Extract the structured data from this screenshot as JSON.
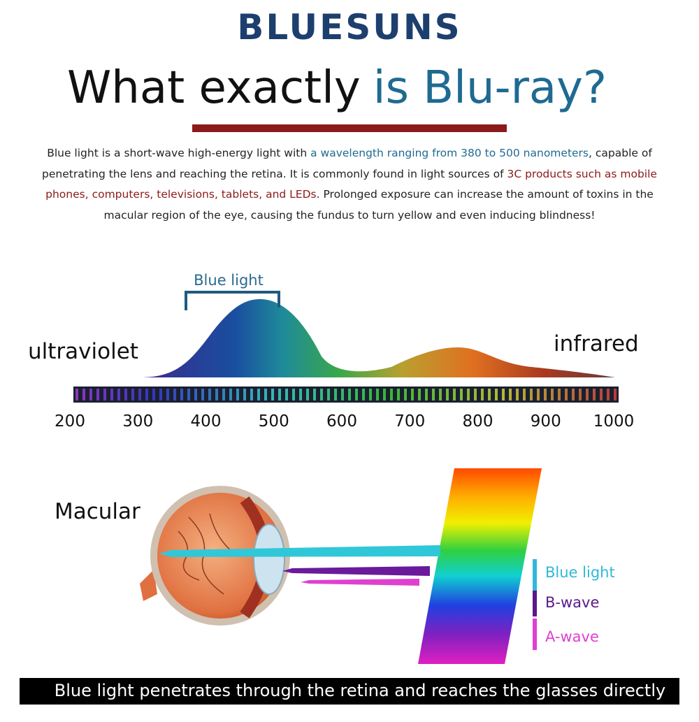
{
  "brand": "BLUESUNS",
  "title": {
    "part1": "What exactly",
    "part2": "is Blu-ray?"
  },
  "paragraph": [
    "Blue light is a short-wave high-energy light with ",
    "a wavelength ranging from 380 to 500 nanometers",
    ", capable of penetrating the lens and reaching the retina. It is commonly found in light sources of ",
    "3C products such as mobile phones, computers, televisions, tablets, and LEDs",
    ". Prolonged exposure can increase the amount of toxins in the macular region of the eye, causing the fundus to turn yellow and even inducing blindness!"
  ],
  "spectrum": {
    "peak_label": "Blue light",
    "left_label": "ultraviolet",
    "right_label": "infrared",
    "scale": [
      200,
      300,
      400,
      500,
      600,
      700,
      800,
      900,
      1000
    ]
  },
  "eye": {
    "label": "Macular",
    "legend": [
      "Blue light",
      "B-wave",
      "A-wave"
    ]
  },
  "footer": "Blue light penetrates through the retina and reaches the glasses directly"
}
